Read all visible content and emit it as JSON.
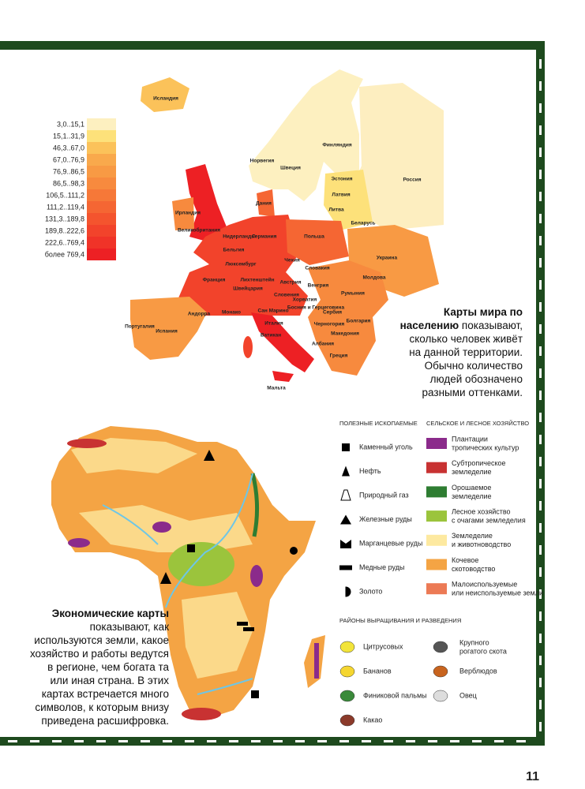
{
  "population_map": {
    "legend": [
      "3,0..15,1",
      "15,1..31,9",
      "46,3..67,0",
      "67,0..76,9",
      "76,9..86,5",
      "86,5..98,3",
      "106,5..111,2",
      "111,2..119,4",
      "131,3..189,8",
      "189,8..222,6",
      "222,6..769,4",
      "более 769,4"
    ],
    "countries": [
      "Исландия",
      "Норвегия",
      "Швеция",
      "Финляндия",
      "Россия",
      "Эстония",
      "Латвия",
      "Литва",
      "Беларусь",
      "Дания",
      "Ирландия",
      "Великобритания",
      "Нидерланды",
      "Германия",
      "Польша",
      "Бельгия",
      "Люксембург",
      "Чехия",
      "Словакия",
      "Украина",
      "Франция",
      "Лихтенштейн",
      "Швейцария",
      "Австрия",
      "Венгрия",
      "Молдова",
      "Румыния",
      "Словения",
      "Хорватия",
      "Сербия",
      "Босния и Герцеговина",
      "Черногория",
      "Болгария",
      "Сан Марино",
      "Монако",
      "Андорра",
      "Португалия",
      "Испания",
      "Италия",
      "Ватикан",
      "Македония",
      "Албания",
      "Греция",
      "Мальта"
    ]
  },
  "population_text": {
    "lead": "Карты мира по населению",
    "body": "показывают, сколько человек живёт на данной территории. Обычно количество людей обозначено разными оттенками."
  },
  "economic_text": {
    "lead": "Экономические карты",
    "body": "показывают, как используются земли, какое хозяйство и работы ведутся в регионе, чем богата та или иная страна. В этих картах встречается много символов, к которым внизу приведена расшифровка."
  },
  "economic_legend": {
    "minerals": {
      "title": "ПОЛЕЗНЫЕ ИСКОПАЕМЫЕ",
      "items": [
        "Каменный уголь",
        "Нефть",
        "Природный газ",
        "Железные руды",
        "Марганцевые руды",
        "Медные руды",
        "Золото"
      ]
    },
    "agriculture": {
      "title": "СЕЛЬСКОЕ И ЛЕСНОЕ ХОЗЯЙСТВО",
      "items": [
        [
          "Плантации",
          "тропических культур"
        ],
        [
          "Субтропическое",
          "земледелие"
        ],
        [
          "Орошаемое",
          "земледелие"
        ],
        [
          "Лесное хозяйство",
          "с очагами земледелия"
        ],
        [
          "Земледелие",
          "и животноводство"
        ],
        [
          "Кочевое",
          "скотоводство"
        ],
        [
          "Малоиспользуемые",
          "или неиспользуемые земли"
        ]
      ]
    },
    "breeding": {
      "title": "РАЙОНЫ ВЫРАЩИВАНИЯ И РАЗВЕДЕНИЯ",
      "items": [
        "Цитрусовых",
        "Бананов",
        "Финиковой пальмы",
        "Какао",
        [
          "Крупного",
          "рогатого скота"
        ],
        "Верблюдов",
        "Овец"
      ]
    }
  },
  "page_number": "11"
}
